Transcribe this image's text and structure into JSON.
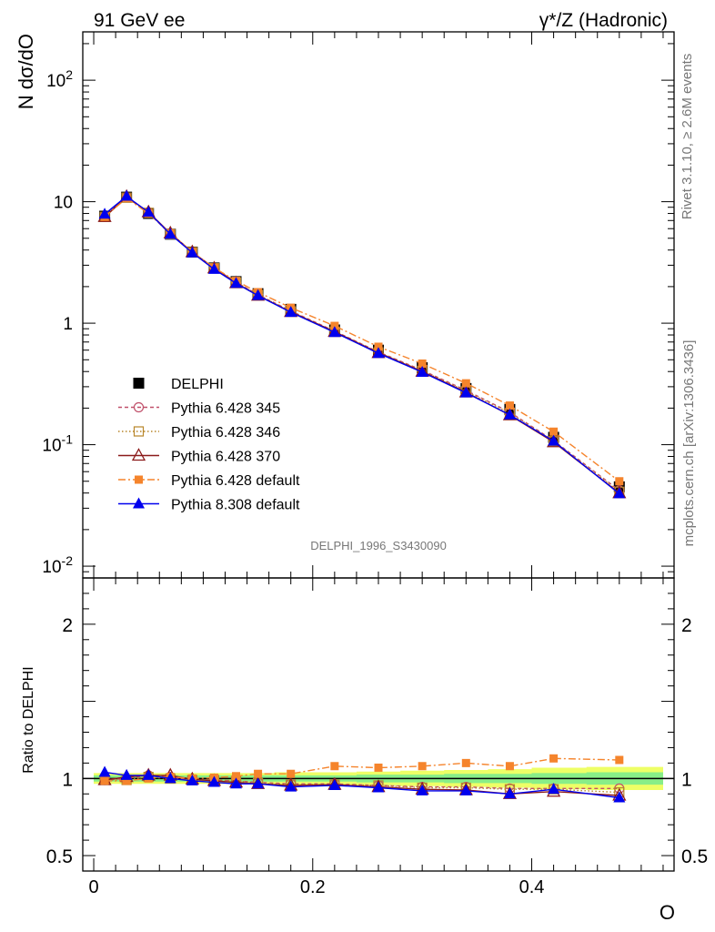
{
  "header": {
    "left_title": "91 GeV ee",
    "right_title": "γ*/Z (Hadronic)"
  },
  "side_labels": {
    "rivet": "Rivet 3.1.10, ≥ 2.6M events",
    "mcplots": "mcplots.cern.ch [arXiv:1306.3436]"
  },
  "watermark": "DELPHI_1996_S3430090",
  "chart_data": [
    {
      "type": "line",
      "panel": "main",
      "ylabel": "N dσ/dO",
      "xlabel": "O",
      "yscale": "log",
      "ylim": [
        0.008,
        250
      ],
      "xlim": [
        -0.01,
        0.53
      ],
      "y_tick_labels": [
        "10^-2",
        "10^-1",
        "1",
        "10",
        "10^2"
      ],
      "legend_placement": "center-left",
      "x": [
        0.01,
        0.03,
        0.05,
        0.07,
        0.09,
        0.11,
        0.13,
        0.15,
        0.18,
        0.22,
        0.26,
        0.3,
        0.34,
        0.38,
        0.42,
        0.48
      ],
      "series": [
        {
          "name": "DELPHI",
          "color": "#000000",
          "marker": "square-filled",
          "values": [
            7.6,
            10.9,
            8.0,
            5.4,
            3.85,
            2.85,
            2.2,
            1.75,
            1.3,
            0.88,
            0.6,
            0.43,
            0.29,
            0.195,
            0.115,
            0.045
          ]
        },
        {
          "name": "Pythia 6.428 345",
          "color": "#c0506a",
          "marker": "circle-open",
          "dash": "4,3",
          "values": [
            7.5,
            10.9,
            8.1,
            5.4,
            3.85,
            2.85,
            2.18,
            1.72,
            1.26,
            0.86,
            0.58,
            0.41,
            0.28,
            0.185,
            0.108,
            0.042
          ]
        },
        {
          "name": "Pythia 6.428 346",
          "color": "#b8862a",
          "marker": "square-open",
          "dash": "1.5,2.5",
          "values": [
            7.5,
            10.8,
            8.1,
            5.4,
            3.85,
            2.84,
            2.17,
            1.71,
            1.25,
            0.85,
            0.575,
            0.405,
            0.275,
            0.182,
            0.107,
            0.041
          ]
        },
        {
          "name": "Pythia 6.428 370",
          "color": "#8b1a1a",
          "marker": "triangle-open",
          "dash": "",
          "values": [
            7.5,
            11.0,
            8.2,
            5.5,
            3.85,
            2.83,
            2.14,
            1.69,
            1.24,
            0.85,
            0.57,
            0.4,
            0.27,
            0.175,
            0.105,
            0.04
          ]
        },
        {
          "name": "Pythia 6.428 default",
          "color": "#f5842c",
          "marker": "square-filled-small",
          "dash": "8,3,2,3",
          "values": [
            7.5,
            10.7,
            8.0,
            5.5,
            3.85,
            2.86,
            2.23,
            1.8,
            1.34,
            0.95,
            0.64,
            0.465,
            0.32,
            0.21,
            0.128,
            0.05
          ]
        },
        {
          "name": "Pythia 8.308 default",
          "color": "#0000ee",
          "marker": "triangle-filled",
          "dash": "",
          "values": [
            7.9,
            11.1,
            8.2,
            5.4,
            3.8,
            2.78,
            2.13,
            1.69,
            1.23,
            0.84,
            0.565,
            0.395,
            0.267,
            0.176,
            0.107,
            0.0395
          ]
        }
      ]
    },
    {
      "type": "line",
      "panel": "ratio",
      "ylabel": "Ratio to DELPHI",
      "xlabel": "O",
      "ylim": [
        0.4,
        2.3
      ],
      "y_tick_labels": [
        "0.5",
        "1",
        "2"
      ],
      "x_tick_labels": [
        "0",
        "0.2",
        "0.4"
      ],
      "x": [
        0.01,
        0.03,
        0.05,
        0.07,
        0.09,
        0.11,
        0.13,
        0.15,
        0.18,
        0.22,
        0.26,
        0.3,
        0.34,
        0.38,
        0.42,
        0.48
      ],
      "bands": {
        "inner_color": "#88ee88",
        "outer_color": "#eeff66",
        "inner": [
          0.02,
          0.02,
          0.02,
          0.02,
          0.02,
          0.02,
          0.02,
          0.02,
          0.02,
          0.02,
          0.025,
          0.025,
          0.03,
          0.03,
          0.035,
          0.04
        ],
        "outer": [
          0.035,
          0.035,
          0.035,
          0.035,
          0.035,
          0.035,
          0.035,
          0.035,
          0.04,
          0.04,
          0.045,
          0.05,
          0.055,
          0.06,
          0.07,
          0.075
        ]
      },
      "series": [
        {
          "name": "Pythia 6.428 345",
          "color": "#c0506a",
          "marker": "circle-open",
          "dash": "4,3",
          "values": [
            0.99,
            1.0,
            1.02,
            1.01,
            0.99,
            0.99,
            0.985,
            0.975,
            0.965,
            0.965,
            0.955,
            0.945,
            0.945,
            0.935,
            0.935,
            0.935
          ]
        },
        {
          "name": "Pythia 6.428 346",
          "color": "#b8862a",
          "marker": "square-open",
          "dash": "1.5,2.5",
          "values": [
            0.99,
            0.99,
            1.01,
            1.0,
            0.99,
            0.99,
            0.985,
            0.97,
            0.96,
            0.96,
            0.955,
            0.94,
            0.94,
            0.93,
            0.93,
            0.91
          ]
        },
        {
          "name": "Pythia 6.428 370",
          "color": "#8b1a1a",
          "marker": "triangle-open",
          "dash": "",
          "values": [
            0.99,
            1.01,
            1.02,
            1.02,
            0.995,
            0.985,
            0.975,
            0.965,
            0.955,
            0.96,
            0.945,
            0.93,
            0.925,
            0.9,
            0.915,
            0.89
          ]
        },
        {
          "name": "Pythia 6.428 default",
          "color": "#f5842c",
          "marker": "square-filled-small",
          "dash": "8,3,2,3",
          "values": [
            0.985,
            0.985,
            1.0,
            1.01,
            1.0,
            1.005,
            1.015,
            1.03,
            1.03,
            1.08,
            1.07,
            1.08,
            1.1,
            1.08,
            1.13,
            1.12
          ]
        },
        {
          "name": "Pythia 8.308 default",
          "color": "#0000ee",
          "marker": "triangle-filled",
          "dash": "",
          "values": [
            1.04,
            1.02,
            1.02,
            1.0,
            0.985,
            0.975,
            0.965,
            0.965,
            0.945,
            0.955,
            0.94,
            0.92,
            0.92,
            0.9,
            0.93,
            0.875
          ]
        }
      ]
    }
  ]
}
